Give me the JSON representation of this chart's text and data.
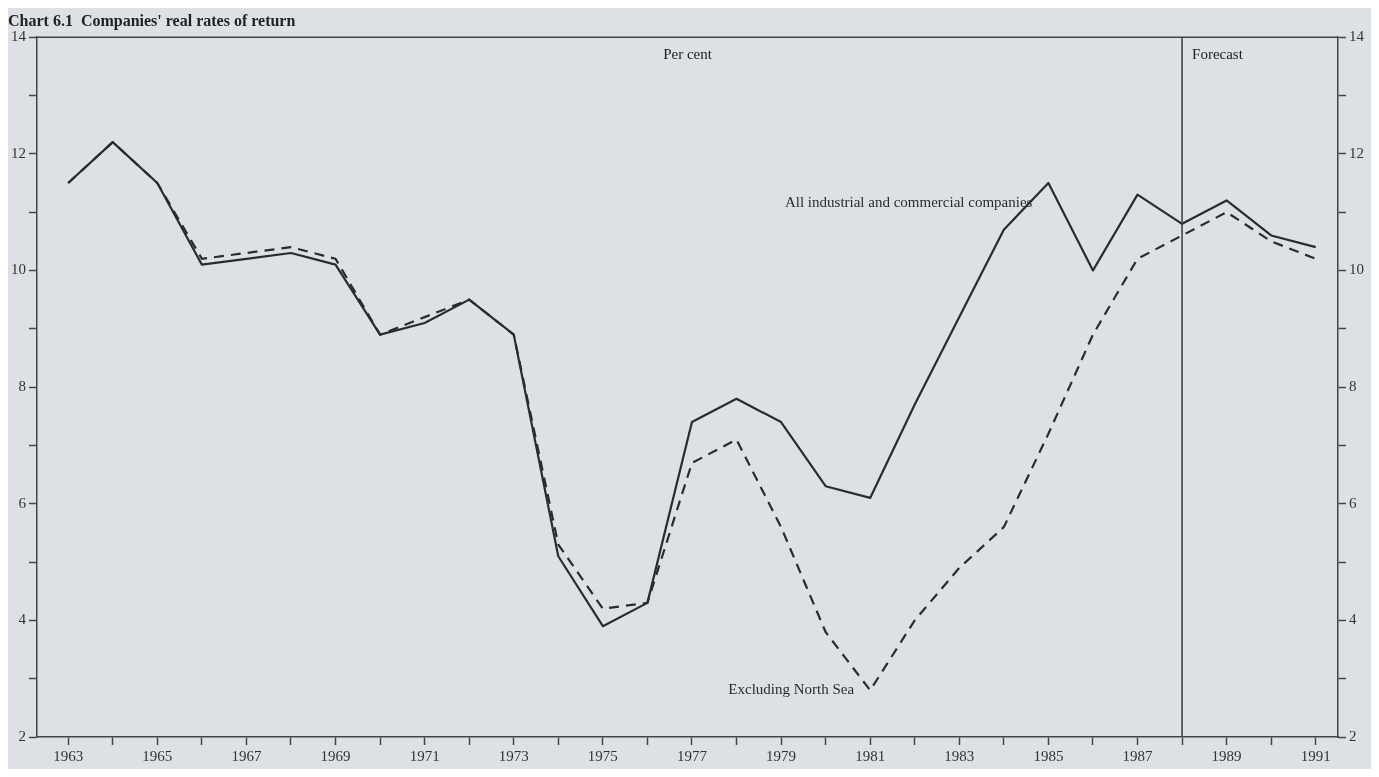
{
  "chart_data": {
    "type": "line",
    "title": "Chart 6.1  Companies' real rates of return",
    "annotations": [
      "Per cent"
    ],
    "x": [
      1963,
      1964,
      1965,
      1966,
      1967,
      1968,
      1969,
      1970,
      1971,
      1972,
      1973,
      1974,
      1975,
      1976,
      1977,
      1978,
      1979,
      1980,
      1981,
      1982,
      1983,
      1984,
      1985,
      1986,
      1987,
      1988,
      1989,
      1990,
      1991
    ],
    "series": [
      {
        "name": "All industrial and commercial companies",
        "color": "#2b2b2b",
        "line_style": "solid",
        "values": [
          11.5,
          12.2,
          11.5,
          10.1,
          10.2,
          10.3,
          10.1,
          8.9,
          9.1,
          9.5,
          8.9,
          5.1,
          3.9,
          4.3,
          7.4,
          7.8,
          7.4,
          6.3,
          6.1,
          7.7,
          9.2,
          10.7,
          11.5,
          10.0,
          11.3,
          10.8,
          11.2,
          10.6,
          10.4
        ]
      },
      {
        "name": "Excluding North Sea",
        "color": "#2b2b2b",
        "line_style": "dashed",
        "values": [
          11.5,
          12.2,
          11.5,
          10.2,
          10.3,
          10.4,
          10.2,
          8.9,
          9.2,
          9.5,
          8.9,
          5.3,
          4.2,
          4.3,
          6.7,
          7.1,
          5.6,
          3.8,
          2.8,
          4.0,
          4.9,
          5.6,
          7.2,
          8.9,
          10.2,
          10.6,
          11.0,
          10.5,
          10.2
        ]
      }
    ],
    "xlim": [
      1962.3,
      1991.5
    ],
    "xticks": [
      1963,
      {
        "value": 1964,
        "label": null
      },
      1965,
      {
        "value": 1966,
        "label": null
      },
      1967,
      {
        "value": 1968,
        "label": null
      },
      1969,
      {
        "value": 1970,
        "label": null
      },
      1971,
      {
        "value": 1972,
        "label": null
      },
      1973,
      {
        "value": 1974,
        "label": null
      },
      1975,
      {
        "value": 1976,
        "label": null
      },
      1977,
      {
        "value": 1978,
        "label": null
      },
      1979,
      {
        "value": 1980,
        "label": null
      },
      1981,
      {
        "value": 1982,
        "label": null
      },
      1983,
      {
        "value": 1984,
        "label": null
      },
      1985,
      {
        "value": 1986,
        "label": null
      },
      1987,
      {
        "value": 1988,
        "label": null
      },
      1989,
      {
        "value": 1990,
        "label": null
      },
      1991
    ],
    "ylim": [
      2,
      14
    ],
    "yticks": [
      2,
      {
        "value": 3,
        "label": null
      },
      4,
      {
        "value": 5,
        "label": null
      },
      6,
      {
        "value": 7,
        "label": null
      },
      8,
      {
        "value": 9,
        "label": null
      },
      10,
      {
        "value": 11,
        "label": null
      },
      12,
      {
        "value": 13,
        "label": null
      },
      14
    ],
    "y2lim": [
      2,
      14
    ],
    "y2ticks": [
      2,
      {
        "value": 3,
        "label": null
      },
      4,
      {
        "value": 5,
        "label": null
      },
      6,
      {
        "value": 7,
        "label": null
      },
      8,
      {
        "value": 9,
        "label": null
      },
      10,
      {
        "value": 11,
        "label": null
      },
      12,
      {
        "value": 13,
        "label": null
      },
      14
    ],
    "ref_lines": [
      {
        "axis": "x",
        "value": 1988,
        "label": "Forecast",
        "color": "#3a3a3a"
      }
    ],
    "grid": false,
    "legend": false,
    "marker": "none"
  }
}
